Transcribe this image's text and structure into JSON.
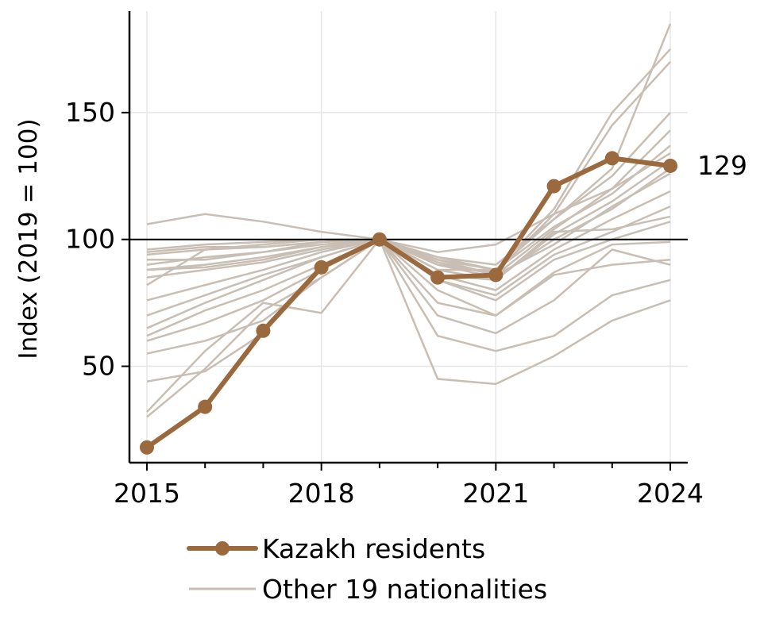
{
  "chart_data": {
    "type": "line",
    "ylabel": "Index (2019 = 100)",
    "xlabel": "",
    "x": [
      2015,
      2016,
      2017,
      2018,
      2019,
      2020,
      2021,
      2022,
      2023,
      2024
    ],
    "xticks": [
      2015,
      2018,
      2021,
      2024
    ],
    "xtick_labels": [
      "2015",
      "2018",
      "2021",
      "2024"
    ],
    "xlim": [
      2014.7,
      2024.3
    ],
    "yticks": [
      50,
      100,
      150
    ],
    "ytick_labels": [
      "50",
      "100",
      "150"
    ],
    "ylim": [
      12,
      190
    ],
    "reference_line": 100,
    "grid": true,
    "colors": {
      "highlight": "#9a6a3e",
      "others": "#c9beb4",
      "reference": "#000000",
      "grid": "#e6e6e6"
    },
    "highlight": {
      "name": "Kazakh residents",
      "values": [
        18,
        34,
        64,
        89,
        100,
        85,
        86,
        121,
        132,
        129
      ],
      "end_label": "129"
    },
    "others": {
      "name": "Other 19 nationalities",
      "series": [
        [
          106,
          110,
          107,
          103,
          100,
          92,
          88,
          108,
          128,
          185
        ],
        [
          95,
          97,
          97,
          99,
          100,
          88,
          88,
          112,
          150,
          175
        ],
        [
          94,
          96,
          97,
          99,
          100,
          90,
          87,
          110,
          145,
          170
        ],
        [
          92,
          92,
          95,
          99,
          100,
          93,
          90,
          108,
          125,
          150
        ],
        [
          96,
          98,
          99,
          100,
          100,
          95,
          98,
          110,
          120,
          143
        ],
        [
          90,
          93,
          95,
          98,
          100,
          93,
          88,
          105,
          118,
          137
        ],
        [
          88,
          90,
          93,
          97,
          100,
          91,
          86,
          104,
          120,
          134
        ],
        [
          88,
          89,
          92,
          97,
          100,
          88,
          84,
          102,
          115,
          131
        ],
        [
          85,
          88,
          91,
          96,
          100,
          90,
          85,
          100,
          112,
          128
        ],
        [
          82,
          96,
          98,
          100,
          100,
          92,
          86,
          98,
          113,
          126
        ],
        [
          76,
          82,
          88,
          95,
          100,
          86,
          80,
          96,
          108,
          119
        ],
        [
          70,
          78,
          86,
          93,
          100,
          84,
          78,
          94,
          103,
          113
        ],
        [
          65,
          75,
          84,
          93,
          100,
          86,
          84,
          103,
          104,
          109
        ],
        [
          62,
          72,
          80,
          90,
          100,
          84,
          76,
          92,
          100,
          107
        ],
        [
          60,
          67,
          76,
          88,
          100,
          80,
          70,
          87,
          98,
          99
        ],
        [
          55,
          60,
          68,
          85,
          100,
          75,
          70,
          86,
          90,
          92
        ],
        [
          44,
          48,
          63,
          88,
          100,
          70,
          63,
          76,
          96,
          90
        ],
        [
          32,
          56,
          75,
          71,
          100,
          62,
          56,
          62,
          78,
          84
        ],
        [
          30,
          49,
          72,
          85,
          100,
          45,
          43,
          54,
          68,
          76
        ]
      ]
    },
    "legend": {
      "position": "bottom",
      "entries": [
        "Kazakh residents",
        "Other 19 nationalities"
      ]
    }
  }
}
